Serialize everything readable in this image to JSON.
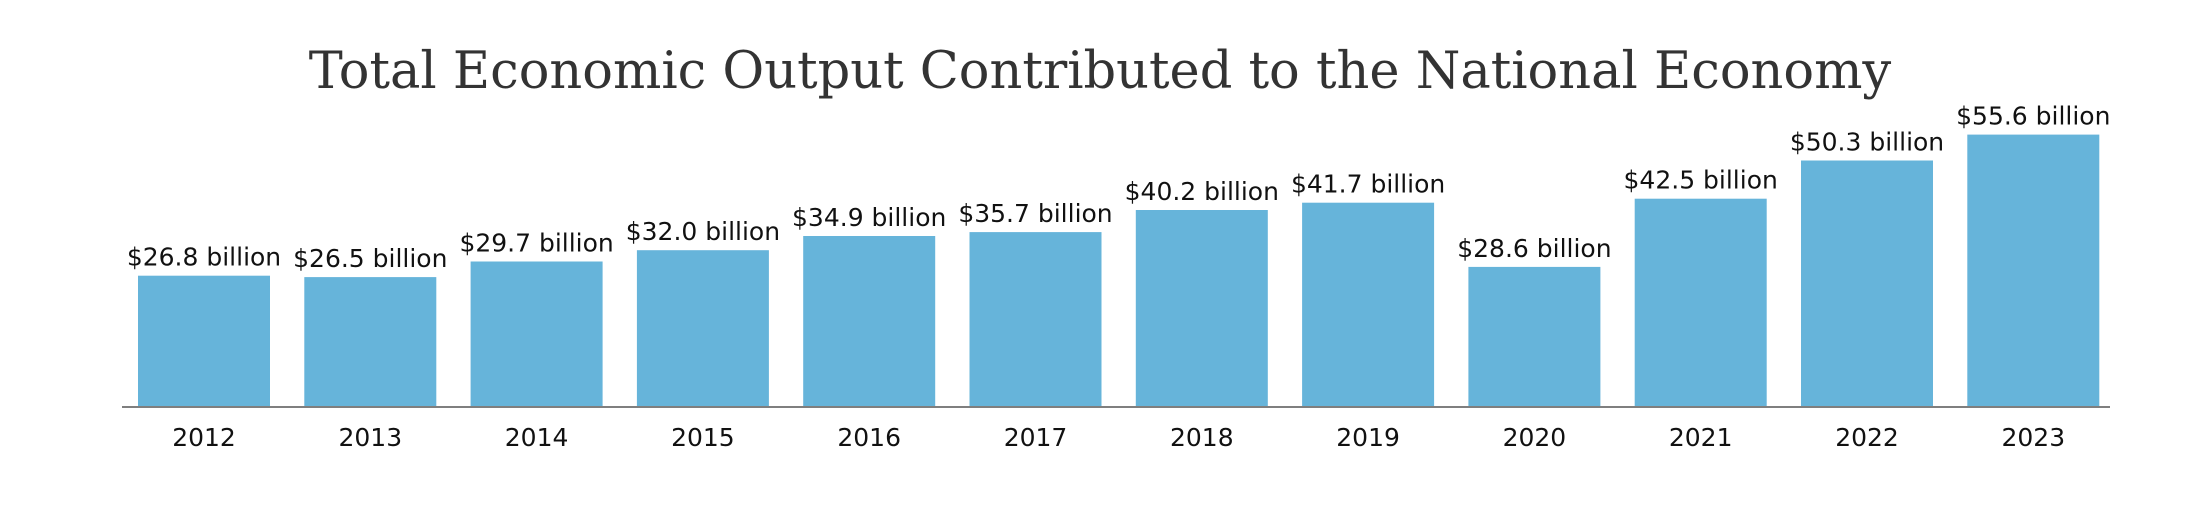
{
  "chart_data": {
    "type": "bar",
    "title": "Total Economic Output Contributed to the National Economy",
    "xlabel": "",
    "ylabel": "",
    "categories": [
      "2012",
      "2013",
      "2014",
      "2015",
      "2016",
      "2017",
      "2018",
      "2019",
      "2020",
      "2021",
      "2022",
      "2023"
    ],
    "values": [
      26.8,
      26.5,
      29.7,
      32.0,
      34.9,
      35.7,
      40.2,
      41.7,
      28.6,
      42.5,
      50.3,
      55.6
    ],
    "data_labels": [
      "$26.8 billion",
      "$26.5 billion",
      "$29.7 billion",
      "$32.0 billion",
      "$34.9 billion",
      "$35.7 billion",
      "$40.2 billion",
      "$41.7 billion",
      "$28.6 billion",
      "$42.5 billion",
      "$50.3 billion",
      "$55.6 billion"
    ],
    "unit": "billion USD",
    "ylim": [
      0,
      60
    ],
    "grid": false,
    "legend": "none",
    "bar_color": "#66b4da",
    "axis_color": "#7f7f7f"
  }
}
